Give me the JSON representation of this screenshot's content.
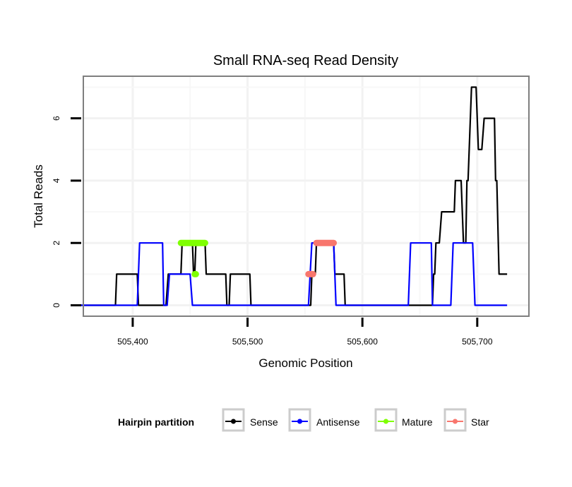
{
  "chart_data": {
    "type": "line",
    "title": "Small RNA-seq Read Density",
    "xlabel": "Genomic Position",
    "ylabel": "Total Reads",
    "xlim": [
      505357,
      505745
    ],
    "ylim": [
      -0.35,
      7.35
    ],
    "x_ticks": [
      505400,
      505500,
      505600,
      505700
    ],
    "x_tick_labels": [
      "505,400",
      "505,500",
      "505,600",
      "505,700"
    ],
    "y_ticks": [
      0,
      2,
      4,
      6
    ],
    "y_tick_labels": [
      "0",
      "2",
      "4",
      "6"
    ],
    "grid": true,
    "legend": {
      "title": "Hairpin partition",
      "position": "bottom",
      "entries": [
        "Sense",
        "Antisense",
        "Mature",
        "Star"
      ]
    },
    "series": [
      {
        "name": "Sense",
        "color": "#000000",
        "points": [
          [
            505354,
            0
          ],
          [
            505385,
            0
          ],
          [
            505386,
            1
          ],
          [
            505404,
            1
          ],
          [
            505405,
            0
          ],
          [
            505429,
            0
          ],
          [
            505431,
            1
          ],
          [
            505442,
            1
          ],
          [
            505443,
            2
          ],
          [
            505452,
            2
          ],
          [
            505453,
            1
          ],
          [
            505454,
            1
          ],
          [
            505455,
            2
          ],
          [
            505456,
            2
          ],
          [
            505457,
            2
          ],
          [
            505463,
            2
          ],
          [
            505464,
            1
          ],
          [
            505481,
            1
          ],
          [
            505482,
            0
          ],
          [
            505484,
            0
          ],
          [
            505485,
            1
          ],
          [
            505502,
            1
          ],
          [
            505503,
            0
          ],
          [
            505555,
            0
          ],
          [
            505556,
            1
          ],
          [
            505559,
            1
          ],
          [
            505560,
            2
          ],
          [
            505575,
            2
          ],
          [
            505576,
            1
          ],
          [
            505584,
            1
          ],
          [
            505585,
            0
          ],
          [
            505661,
            0
          ],
          [
            505662,
            1
          ],
          [
            505663,
            1
          ],
          [
            505664,
            2
          ],
          [
            505667,
            2
          ],
          [
            505669,
            3
          ],
          [
            505680,
            3
          ],
          [
            505681,
            4
          ],
          [
            505686,
            4
          ],
          [
            505688,
            2
          ],
          [
            505690,
            2
          ],
          [
            505691,
            4
          ],
          [
            505692,
            4
          ],
          [
            505695,
            7
          ],
          [
            505699,
            7
          ],
          [
            505700,
            6
          ],
          [
            505701,
            5
          ],
          [
            505704,
            5
          ],
          [
            505706,
            6
          ],
          [
            505715,
            6
          ],
          [
            505716,
            4
          ],
          [
            505717,
            4
          ],
          [
            505719,
            1
          ],
          [
            505726,
            1
          ]
        ]
      },
      {
        "name": "Antisense",
        "color": "#0000ff",
        "points": [
          [
            505354,
            0
          ],
          [
            505404,
            0
          ],
          [
            505406,
            2
          ],
          [
            505426,
            2
          ],
          [
            505427,
            0
          ],
          [
            505430,
            0
          ],
          [
            505432,
            1
          ],
          [
            505450,
            1
          ],
          [
            505452,
            0
          ],
          [
            505553,
            0
          ],
          [
            505556,
            2
          ],
          [
            505575,
            2
          ],
          [
            505577,
            0
          ],
          [
            505640,
            0
          ],
          [
            505642,
            2
          ],
          [
            505660,
            2
          ],
          [
            505661,
            0
          ],
          [
            505677,
            0
          ],
          [
            505679,
            2
          ],
          [
            505696,
            2
          ],
          [
            505698,
            0
          ],
          [
            505726,
            0
          ]
        ]
      },
      {
        "name": "Mature",
        "color": "#7fff00",
        "segments": [
          {
            "x": [
              505442,
              505463
            ],
            "y": 2
          },
          {
            "x": [
              505454,
              505455
            ],
            "y": 1
          }
        ]
      },
      {
        "name": "Star",
        "color": "#f8766d",
        "segments": [
          {
            "x": [
              505560,
              505575
            ],
            "y": 2
          },
          {
            "x": [
              505553,
              505557
            ],
            "y": 1
          }
        ]
      }
    ]
  }
}
